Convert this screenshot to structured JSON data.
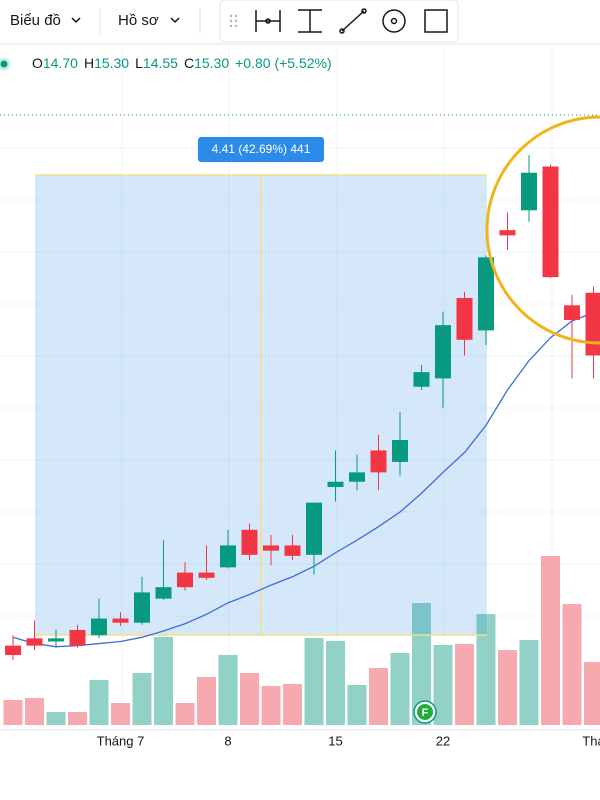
{
  "toolbar": {
    "chart_menu": "Biểu đồ",
    "profile_menu": "Hồ sơ"
  },
  "chart_data": {
    "type": "candlestick",
    "legend": {
      "ohlc": [
        {
          "label": "O",
          "value": "14.70"
        },
        {
          "label": "H",
          "value": "15.30"
        },
        {
          "label": "L",
          "value": "14.55"
        },
        {
          "label": "C",
          "value": "15.30"
        }
      ],
      "change": "+0.80 (+5.52%)"
    },
    "measure_label": "4.41 (42.69%) 441",
    "marker_label": "F",
    "categories": [
      null,
      null,
      null,
      null,
      null,
      "Tháng 7",
      null,
      null,
      null,
      null,
      "8",
      null,
      null,
      null,
      null,
      "15",
      null,
      null,
      null,
      null,
      "22",
      null,
      null,
      null,
      null,
      null,
      null,
      "Thá"
    ],
    "open": [
      10.23,
      10.3,
      10.27,
      10.38,
      10.33,
      10.49,
      10.45,
      10.68,
      10.93,
      10.93,
      10.98,
      11.34,
      11.19,
      11.19,
      11.1,
      11.75,
      11.8,
      12.1,
      11.99,
      12.71,
      12.79,
      13.56,
      13.25,
      14.21,
      14.4,
      14.82,
      13.49,
      13.61
    ],
    "high": [
      10.33,
      10.47,
      10.38,
      10.43,
      10.68,
      10.55,
      10.89,
      11.24,
      11.03,
      11.19,
      11.34,
      11.4,
      11.29,
      11.29,
      11.6,
      12.1,
      12.06,
      12.25,
      12.47,
      12.92,
      13.43,
      13.62,
      13.97,
      14.38,
      14.93,
      14.84,
      13.59,
      13.67
    ],
    "low": [
      10.09,
      10.19,
      10.21,
      10.21,
      10.3,
      10.42,
      10.43,
      10.67,
      10.76,
      10.86,
      10.97,
      11.05,
      11.0,
      11.05,
      10.91,
      11.61,
      11.72,
      11.72,
      11.86,
      12.68,
      12.51,
      13.01,
      13.11,
      14.02,
      14.29,
      13.75,
      12.79,
      12.79
    ],
    "close": [
      10.14,
      10.23,
      10.3,
      10.23,
      10.49,
      10.45,
      10.74,
      10.79,
      10.79,
      10.88,
      11.19,
      11.1,
      11.14,
      11.09,
      11.6,
      11.8,
      11.89,
      11.89,
      12.2,
      12.85,
      13.3,
      13.16,
      13.95,
      14.16,
      14.76,
      13.76,
      13.35,
      13.01
    ],
    "volume": [
      25,
      27,
      13,
      13,
      45,
      22,
      52,
      88,
      22,
      48,
      70,
      52,
      39,
      41,
      87,
      84,
      40,
      57,
      72,
      122,
      80,
      81,
      111,
      75,
      85,
      169,
      121,
      63
    ],
    "ma": [
      10.31,
      10.25,
      10.22,
      10.23,
      10.25,
      10.27,
      10.31,
      10.37,
      10.44,
      10.53,
      10.64,
      10.72,
      10.81,
      10.89,
      10.99,
      11.12,
      11.24,
      11.37,
      11.51,
      11.69,
      11.89,
      12.08,
      12.34,
      12.68,
      12.96,
      13.18,
      13.34,
      13.42
    ],
    "up_color": "#089981",
    "down_color": "#f23645",
    "up_volume_color": "#92d2c6",
    "down_volume_color": "#f7a9b0",
    "ma_color": "#3d6ddb",
    "ylim": [
      9.47,
      15.84
    ]
  }
}
